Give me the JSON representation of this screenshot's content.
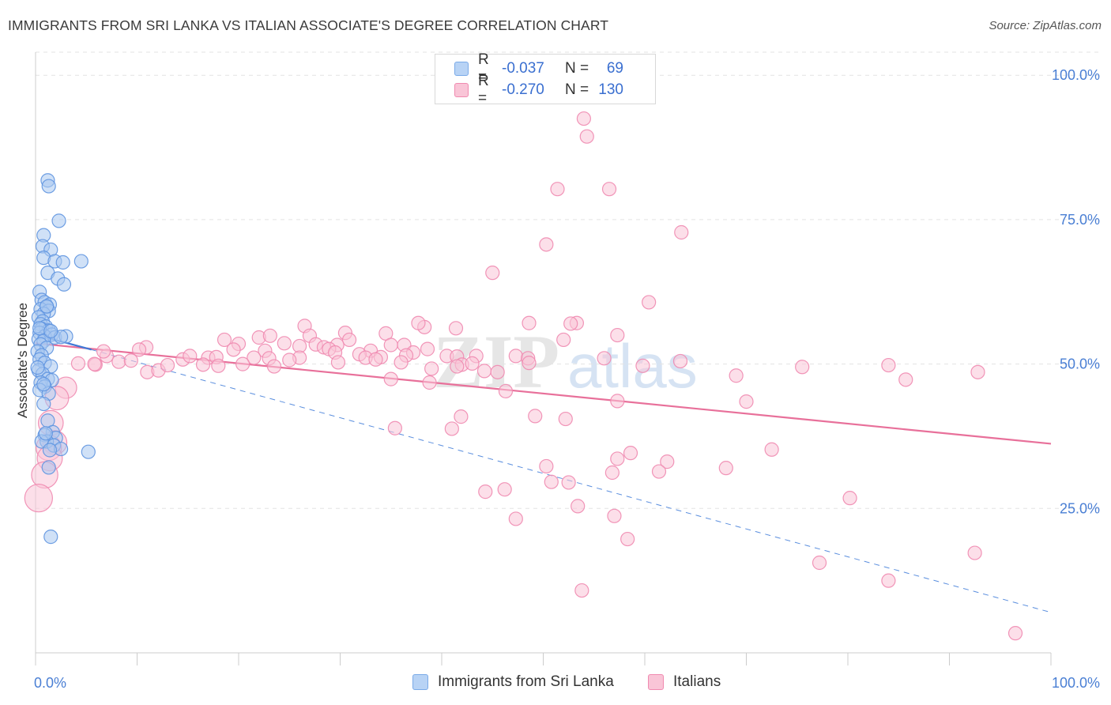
{
  "header": {
    "title": "IMMIGRANTS FROM SRI LANKA VS ITALIAN ASSOCIATE'S DEGREE CORRELATION CHART",
    "source": "Source: ZipAtlas.com"
  },
  "legend": {
    "rows": [
      {
        "r_label": "R =",
        "r_value": "-0.037",
        "n_label": "N =",
        "n_value": "69",
        "color": "#7aaae8",
        "fill": "#b8d3f5"
      },
      {
        "r_label": "R =",
        "r_value": "-0.270",
        "n_label": "N =",
        "n_value": "130",
        "color": "#f08ab0",
        "fill": "#f9c5d7"
      }
    ]
  },
  "bottom_legend": [
    {
      "label": "Immigrants from Sri Lanka",
      "color": "#7aaae8",
      "fill": "#b8d3f5"
    },
    {
      "label": "Italians",
      "color": "#f08ab0",
      "fill": "#f9c5d7"
    }
  ],
  "watermark": {
    "zip": "ZIP",
    "atlas": "atlas"
  },
  "chart_data": {
    "type": "scatter",
    "title": "IMMIGRANTS FROM SRI LANKA VS ITALIAN ASSOCIATE'S DEGREE CORRELATION CHART",
    "xlabel": "",
    "ylabel": "Associate's Degree",
    "xlim": [
      0,
      100
    ],
    "ylim": [
      0,
      104
    ],
    "x_tick_labels": [
      "0.0%",
      "100.0%"
    ],
    "y_ticks": [
      {
        "value": 100,
        "label": "100.0%"
      },
      {
        "value": 75,
        "label": "75.0%"
      },
      {
        "value": 50,
        "label": "50.0%"
      },
      {
        "value": 25,
        "label": "25.0%"
      }
    ],
    "grid": "horizontal dashed",
    "colors": {
      "blue": "#4a80d8",
      "pink": "#e8709a"
    },
    "series": [
      {
        "name": "Immigrants from Sri Lanka",
        "color": "#6aa0e6",
        "trend": {
          "x": [
            0.2,
            5.5
          ],
          "y": [
            55.0,
            52.5
          ],
          "style": "solid"
        },
        "trend_extended": {
          "x": [
            5.5,
            100
          ],
          "y": [
            52.5,
            7.0
          ],
          "style": "dashed"
        },
        "points": [
          [
            1.2,
            81.8
          ],
          [
            1.3,
            80.8
          ],
          [
            2.3,
            74.8
          ],
          [
            0.8,
            72.3
          ],
          [
            0.7,
            70.4
          ],
          [
            1.5,
            69.8
          ],
          [
            0.8,
            68.4
          ],
          [
            1.9,
            67.8
          ],
          [
            2.7,
            67.6
          ],
          [
            4.5,
            67.8
          ],
          [
            1.2,
            65.8
          ],
          [
            2.2,
            64.8
          ],
          [
            2.8,
            63.8
          ],
          [
            0.4,
            62.5
          ],
          [
            0.6,
            61.1
          ],
          [
            0.9,
            60.7
          ],
          [
            1.4,
            60.3
          ],
          [
            1.1,
            59.9
          ],
          [
            0.5,
            59.5
          ],
          [
            1.3,
            59.2
          ],
          [
            0.8,
            58.7
          ],
          [
            0.3,
            58.1
          ],
          [
            0.7,
            57.4
          ],
          [
            0.5,
            56.9
          ],
          [
            1.0,
            56.5
          ],
          [
            0.6,
            56.1
          ],
          [
            1.3,
            55.8
          ],
          [
            0.4,
            55.4
          ],
          [
            1.6,
            55.1
          ],
          [
            0.9,
            54.8
          ],
          [
            1.9,
            54.6
          ],
          [
            3.0,
            54.8
          ],
          [
            0.3,
            54.3
          ],
          [
            0.8,
            54.0
          ],
          [
            0.5,
            53.4
          ],
          [
            1.1,
            52.8
          ],
          [
            0.2,
            52.2
          ],
          [
            0.6,
            51.5
          ],
          [
            0.4,
            50.8
          ],
          [
            0.9,
            50.2
          ],
          [
            1.5,
            49.6
          ],
          [
            0.3,
            48.9
          ],
          [
            0.7,
            48.3
          ],
          [
            1.2,
            47.4
          ],
          [
            1.6,
            47.2
          ],
          [
            0.5,
            46.8
          ],
          [
            0.9,
            46.1
          ],
          [
            0.4,
            45.5
          ],
          [
            1.3,
            44.9
          ],
          [
            0.8,
            43.1
          ],
          [
            1.2,
            40.2
          ],
          [
            1.7,
            38.2
          ],
          [
            0.9,
            37.7
          ],
          [
            2.0,
            37.2
          ],
          [
            1.1,
            36.6
          ],
          [
            0.6,
            36.6
          ],
          [
            1.8,
            35.9
          ],
          [
            2.5,
            35.3
          ],
          [
            1.4,
            35.1
          ],
          [
            5.2,
            34.8
          ],
          [
            1.3,
            32.1
          ],
          [
            1.5,
            20.1
          ],
          [
            0.8,
            46.5
          ],
          [
            1.0,
            38.0
          ],
          [
            0.4,
            56.2
          ],
          [
            1.1,
            60.0
          ],
          [
            2.5,
            54.7
          ],
          [
            0.2,
            49.4
          ],
          [
            1.5,
            55.7
          ]
        ]
      },
      {
        "name": "Italians",
        "color": "#f08ab0",
        "trend": {
          "x": [
            0,
            100
          ],
          "y": [
            53.6,
            36.2
          ],
          "style": "solid"
        },
        "points": [
          [
            54.0,
            92.5
          ],
          [
            54.3,
            89.4
          ],
          [
            51.4,
            80.3
          ],
          [
            56.5,
            80.3
          ],
          [
            63.6,
            72.8
          ],
          [
            50.3,
            70.7
          ],
          [
            45.0,
            65.8
          ],
          [
            60.4,
            60.7
          ],
          [
            38.3,
            56.4
          ],
          [
            48.6,
            57.1
          ],
          [
            53.3,
            57.1
          ],
          [
            37.7,
            57.1
          ],
          [
            41.4,
            56.2
          ],
          [
            26.5,
            56.6
          ],
          [
            30.5,
            55.4
          ],
          [
            22.0,
            54.6
          ],
          [
            23.1,
            54.9
          ],
          [
            27.0,
            54.9
          ],
          [
            34.5,
            55.3
          ],
          [
            30.9,
            54.2
          ],
          [
            18.6,
            54.2
          ],
          [
            20.0,
            53.5
          ],
          [
            24.5,
            53.6
          ],
          [
            29.7,
            53.3
          ],
          [
            26.0,
            53.1
          ],
          [
            27.6,
            53.4
          ],
          [
            35.0,
            53.3
          ],
          [
            36.3,
            53.3
          ],
          [
            28.4,
            52.9
          ],
          [
            10.9,
            52.9
          ],
          [
            19.5,
            52.5
          ],
          [
            22.6,
            52.3
          ],
          [
            28.9,
            52.6
          ],
          [
            33.0,
            52.3
          ],
          [
            29.5,
            52.0
          ],
          [
            37.2,
            52.0
          ],
          [
            31.9,
            51.7
          ],
          [
            38.6,
            52.6
          ],
          [
            36.5,
            51.5
          ],
          [
            34.0,
            51.2
          ],
          [
            32.5,
            51.1
          ],
          [
            40.5,
            51.4
          ],
          [
            41.5,
            51.3
          ],
          [
            47.3,
            51.4
          ],
          [
            43.4,
            51.4
          ],
          [
            48.5,
            51.0
          ],
          [
            17.0,
            51.1
          ],
          [
            17.8,
            51.2
          ],
          [
            14.5,
            50.8
          ],
          [
            15.2,
            51.4
          ],
          [
            21.5,
            51.1
          ],
          [
            26.0,
            51.1
          ],
          [
            23.0,
            51.0
          ],
          [
            33.5,
            50.8
          ],
          [
            25.0,
            50.7
          ],
          [
            29.8,
            50.3
          ],
          [
            36.0,
            50.3
          ],
          [
            20.4,
            50.0
          ],
          [
            16.5,
            49.9
          ],
          [
            18.0,
            49.7
          ],
          [
            23.5,
            49.6
          ],
          [
            42.0,
            49.9
          ],
          [
            43.0,
            50.1
          ],
          [
            48.6,
            50.2
          ],
          [
            39.0,
            49.2
          ],
          [
            44.2,
            48.8
          ],
          [
            45.5,
            48.6
          ],
          [
            52.0,
            54.2
          ],
          [
            52.7,
            57.0
          ],
          [
            57.3,
            55.0
          ],
          [
            59.8,
            49.7
          ],
          [
            56.0,
            51.0
          ],
          [
            63.5,
            50.5
          ],
          [
            69.0,
            48.0
          ],
          [
            75.5,
            49.5
          ],
          [
            84.0,
            49.8
          ],
          [
            85.7,
            47.3
          ],
          [
            92.8,
            48.6
          ],
          [
            11.0,
            48.6
          ],
          [
            12.1,
            48.9
          ],
          [
            7.0,
            51.4
          ],
          [
            8.2,
            50.4
          ],
          [
            9.4,
            50.6
          ],
          [
            13.0,
            49.8
          ],
          [
            5.9,
            49.9
          ],
          [
            10.2,
            52.5
          ],
          [
            6.7,
            52.2
          ],
          [
            4.2,
            50.1
          ],
          [
            5.8,
            50.0
          ],
          [
            3.0,
            45.9
          ],
          [
            2.1,
            44.1
          ],
          [
            1.5,
            39.8
          ],
          [
            1.9,
            36.4
          ],
          [
            1.3,
            35.5
          ],
          [
            1.4,
            33.7
          ],
          [
            0.9,
            30.8
          ],
          [
            0.3,
            26.8
          ],
          [
            35.0,
            47.4
          ],
          [
            38.8,
            46.8
          ],
          [
            41.5,
            49.6
          ],
          [
            46.3,
            45.3
          ],
          [
            57.3,
            43.6
          ],
          [
            70.0,
            43.5
          ],
          [
            41.9,
            40.9
          ],
          [
            49.2,
            41.0
          ],
          [
            52.2,
            40.5
          ],
          [
            35.4,
            38.9
          ],
          [
            41.0,
            38.8
          ],
          [
            58.6,
            34.6
          ],
          [
            62.2,
            33.1
          ],
          [
            72.5,
            35.2
          ],
          [
            57.3,
            33.6
          ],
          [
            50.3,
            32.3
          ],
          [
            68.0,
            32.0
          ],
          [
            56.8,
            31.2
          ],
          [
            80.2,
            26.8
          ],
          [
            61.4,
            31.4
          ],
          [
            50.8,
            29.6
          ],
          [
            52.5,
            29.5
          ],
          [
            44.3,
            27.9
          ],
          [
            46.2,
            28.3
          ],
          [
            53.4,
            25.4
          ],
          [
            47.3,
            23.2
          ],
          [
            57.0,
            23.7
          ],
          [
            58.3,
            19.7
          ],
          [
            77.2,
            15.6
          ],
          [
            84.0,
            12.5
          ],
          [
            92.5,
            17.3
          ],
          [
            53.8,
            10.8
          ],
          [
            96.5,
            3.4
          ]
        ]
      }
    ]
  }
}
